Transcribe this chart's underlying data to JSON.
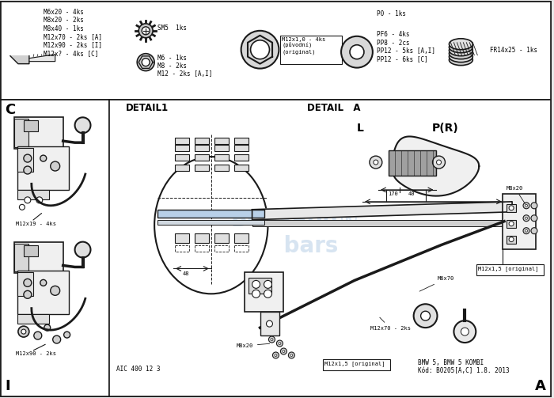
{
  "fig_width": 7.0,
  "fig_height": 5.03,
  "dpi": 100,
  "bg_color": "#e8e8e8",
  "white": "#ffffff",
  "line_color": "#1a1a1a",
  "watermark_color": "#a8c4e0",
  "watermark_alpha": 0.45,
  "bolt_text": "M6x20 - 4ks\nM8x20 - 2ks\nM8x40 - 1ks\nM12x70 - 2ks [A]\nM12x90 - 2ks [I]\nM12x? - 4ks [C]",
  "sm5_text": "SM5  1ks",
  "nuts_text": "M6 - 1ks\nM8 - 2ks\nM12 - 2ks [A,I]",
  "nut_orig_text": "M12x1,0 - 4ks\n(původní)\n(original)",
  "p0_text": "P0 - 1ks\n\nPF6 - 4ks\nPP8 - 2cs\nPP12 - 5ks [A,I]\nPP12 - 6ks [C]",
  "fr_text": "FR14x25 - 1ks",
  "detail1_text": "DETAIL1",
  "detail_a_text": "DETAIL   A",
  "label_C": "C",
  "label_I": "I",
  "label_A": "A",
  "label_L": "L",
  "label_PR": "P(R)",
  "label_top": "M12x19 - 4ks",
  "label_bot": "M12x90 - 2ks",
  "label_M8x20": "M8x20",
  "label_orig1": "M12x1,5 [original]",
  "label_orig2": "M12x1,5 [original]",
  "label_M12x70": "M12x70 - 2ks",
  "label_M8x20b": "M8x20",
  "label_Mx70": "M6x70",
  "label_aic": "AIC 400 12 3",
  "label_binfo": "BMW 5, BMW 5 KOMBI\nKód: B0205[A,C] 1.8. 2013",
  "dim_170": "170",
  "dim_40": "40",
  "dim_48": "48"
}
